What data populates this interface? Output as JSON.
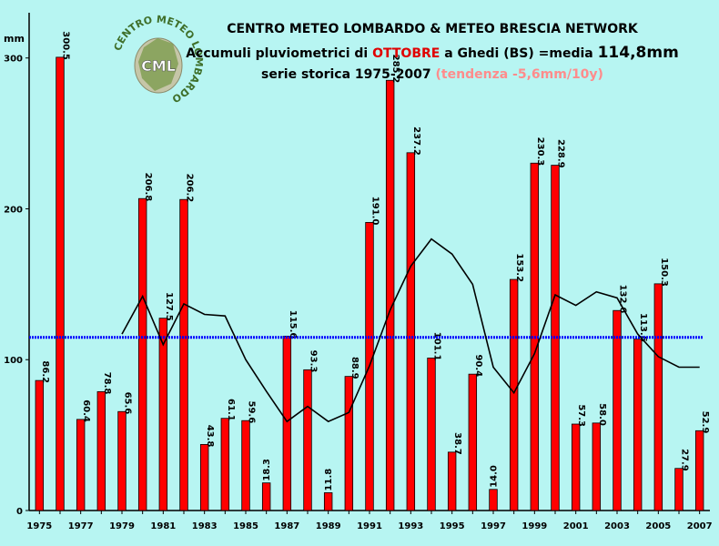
{
  "chart_title": {
    "line1": "CENTRO METEO LOMBARDO & METEO BRESCIA NETWORK",
    "line2_a": "Accumuli pluviometrici di ",
    "line2_month": "OTTOBRE",
    "line2_b": " a Ghedi (BS) =media ",
    "line2_mean": "114,8mm",
    "line3_a": "serie storica 1975-2007 ",
    "line3_trend": "(tendenza -5,6mm/10y)"
  },
  "logo": {
    "text": "CML",
    "ring_text": "CENTRO METEO LOMBARDO"
  },
  "colors": {
    "background": "#b7f5f2",
    "bars": "#ff0000",
    "mean_line": "#0000ff",
    "moving_avg": "#000000"
  },
  "chart_data": {
    "type": "bar",
    "ylabel": "mm",
    "ylim": [
      0,
      330
    ],
    "y_ticks": [
      0,
      100,
      200,
      300
    ],
    "x_tick_labels": [
      "1975",
      "1977",
      "1979",
      "1981",
      "1983",
      "1985",
      "1987",
      "1989",
      "1991",
      "1993",
      "1995",
      "1997",
      "1999",
      "2001",
      "2003",
      "2005",
      "2007"
    ],
    "categories": [
      1975,
      1976,
      1977,
      1978,
      1979,
      1980,
      1981,
      1982,
      1983,
      1984,
      1985,
      1986,
      1987,
      1988,
      1989,
      1990,
      1991,
      1992,
      1993,
      1994,
      1995,
      1996,
      1997,
      1998,
      1999,
      2000,
      2001,
      2002,
      2003,
      2004,
      2005,
      2006,
      2007
    ],
    "values": [
      86.2,
      300.5,
      60.4,
      78.8,
      65.6,
      206.8,
      127.5,
      206.2,
      43.8,
      61.1,
      59.6,
      18.3,
      115.6,
      93.3,
      11.8,
      88.9,
      191.0,
      285.2,
      237.2,
      101.1,
      38.7,
      90.4,
      14.0,
      153.2,
      230.3,
      228.9,
      57.3,
      58.0,
      132.6,
      113.6,
      150.3,
      27.9,
      52.9
    ],
    "data_labels": [
      "86.2",
      "300.5",
      "60.4",
      "78.8",
      "65.6",
      "206.8",
      "127.5",
      "206.2",
      "43.8",
      "61.1",
      "59.6",
      "18.3",
      "115.6",
      "93.3",
      "11.8",
      "88.9",
      "191.0",
      "285.2",
      "237.2",
      "101.1",
      "38.7",
      "90.4",
      "14.0",
      "153.2",
      "230.3",
      "228.9",
      "57.3",
      "58.0",
      "132.6",
      "113.6",
      "150.3",
      "27.9",
      "52.9"
    ],
    "mean_value": 114.8,
    "moving_average": {
      "x": [
        1979,
        1980,
        1981,
        1982,
        1983,
        1984,
        1985,
        1986,
        1987,
        1988,
        1989,
        1990,
        1991,
        1992,
        1993,
        1994,
        1995,
        1996,
        1997,
        1998,
        1999,
        2000,
        2001,
        2002,
        2003,
        2004,
        2005,
        2006,
        2007
      ],
      "values": [
        117,
        142,
        110,
        137,
        130,
        129,
        100,
        79,
        59,
        69,
        59,
        65,
        96,
        133,
        162,
        180,
        170,
        150,
        95,
        78,
        104,
        143,
        136,
        145,
        141,
        117,
        102,
        95,
        95
      ]
    }
  }
}
